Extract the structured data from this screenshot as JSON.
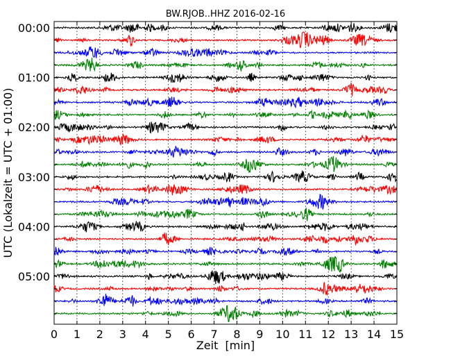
{
  "chart_data": {
    "type": "line",
    "title": "BW.RJOB..HHZ 2016-02-16",
    "xlabel": "Zeit  [min]",
    "ylabel": "UTC (Lokalzeit = UTC + 01:00)",
    "xlim": [
      0,
      15
    ],
    "x_ticks": [
      "0",
      "1",
      "2",
      "3",
      "4",
      "5",
      "6",
      "7",
      "8",
      "9",
      "10",
      "11",
      "12",
      "13",
      "14",
      "15"
    ],
    "y_tick_labels": [
      "00:00",
      "01:00",
      "02:00",
      "03:00",
      "04:00",
      "05:00"
    ],
    "y_tick_every_n_traces": 4,
    "trace_count": 24,
    "trace_interval_minutes": 15,
    "trace_colors": [
      "#000000",
      "#ff0000",
      "#0000ff",
      "#008000"
    ],
    "grid": "vertical dotted at every minute"
  }
}
